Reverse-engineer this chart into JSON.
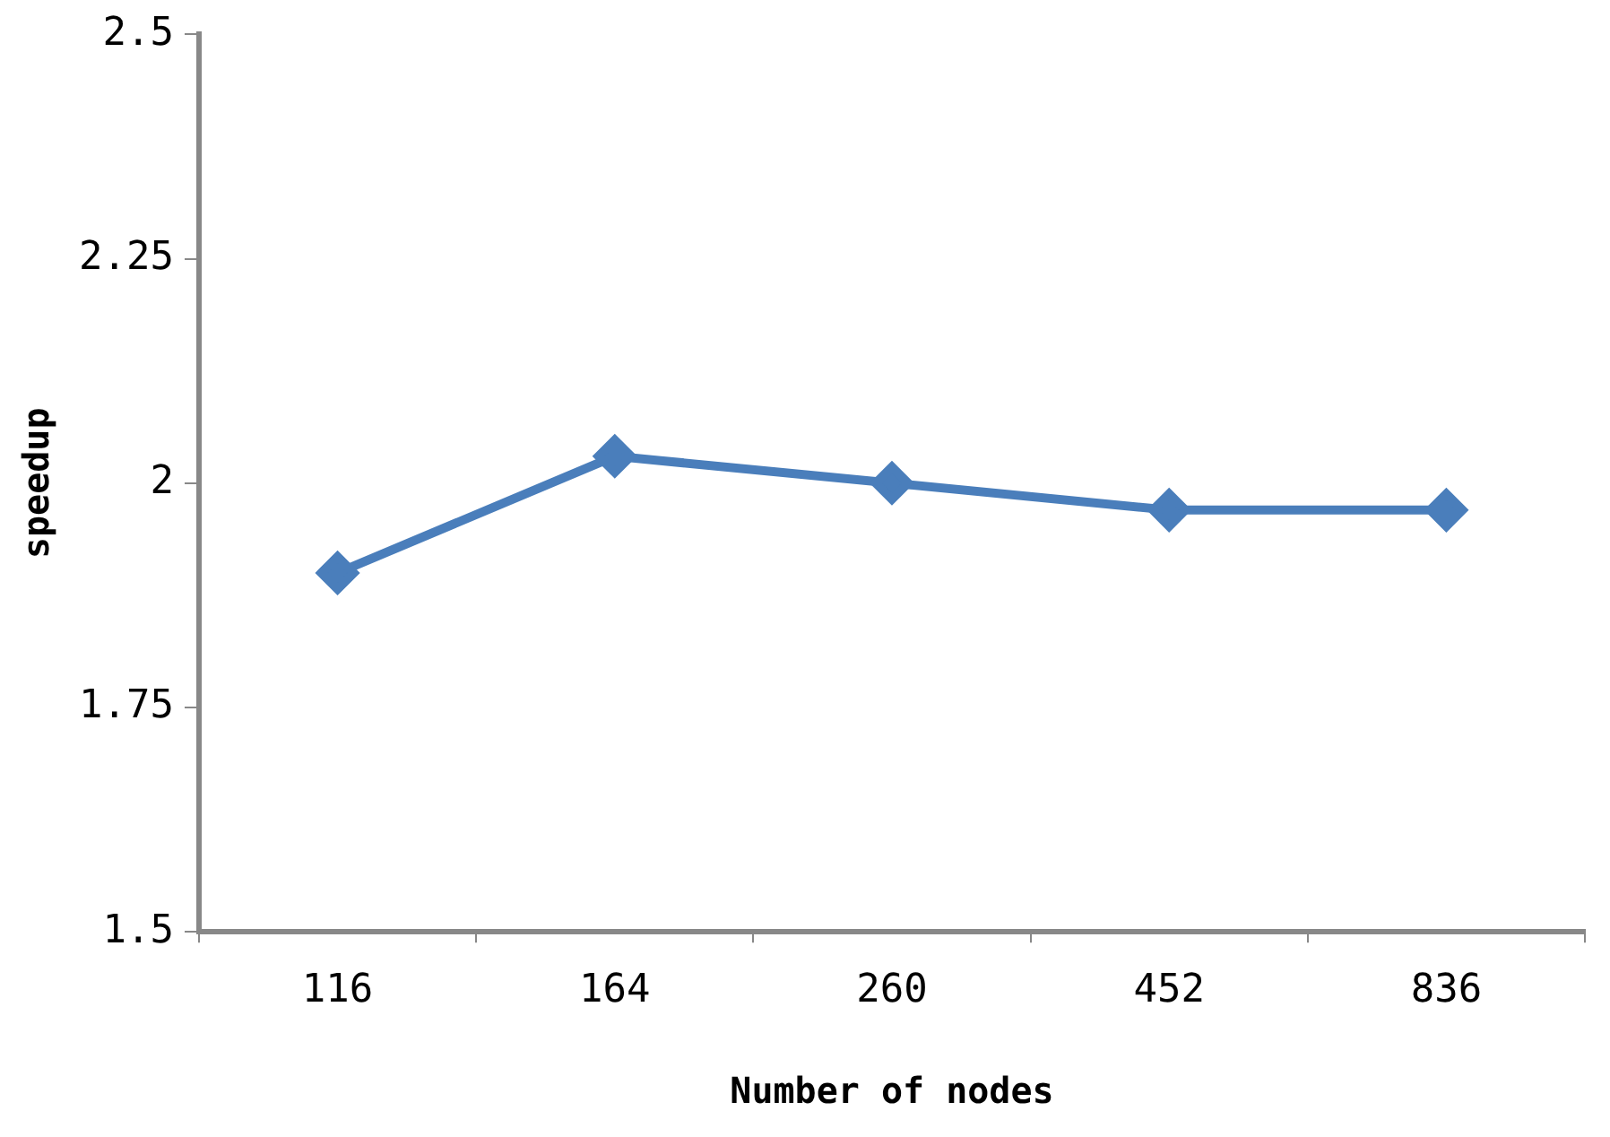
{
  "chart_data": {
    "type": "line",
    "xlabel": "Number of nodes",
    "ylabel": "speedup",
    "categories": [
      "116",
      "164",
      "260",
      "452",
      "836"
    ],
    "series": [
      {
        "color": "#4a7ebb",
        "values": [
          1.9,
          2.03,
          2.0,
          1.97,
          1.97
        ]
      }
    ],
    "ylim": [
      1.5,
      2.5
    ],
    "yticks": [
      {
        "value": 1.5,
        "label": "1.5"
      },
      {
        "value": 1.75,
        "label": "1.75"
      },
      {
        "value": 2,
        "label": "2"
      },
      {
        "value": 2.25,
        "label": "2.25"
      },
      {
        "value": 2.5,
        "label": "2.5"
      }
    ],
    "grid": false,
    "legend": false,
    "marker": "diamond",
    "line_style": "solid"
  }
}
